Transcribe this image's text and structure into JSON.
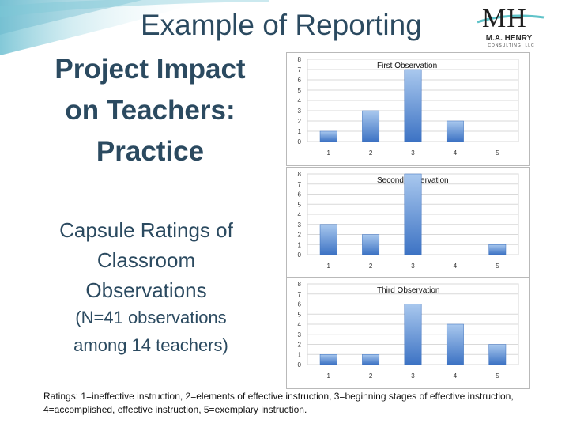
{
  "slide": {
    "title": "Example of Reporting",
    "heading": [
      "Project Impact",
      "on Teachers:",
      "Practice"
    ],
    "subheading": [
      "Capsule Ratings of",
      "Classroom",
      "Observations"
    ],
    "note": [
      "(N=41 observations",
      "among 14 teachers)"
    ],
    "footnote": "Ratings: 1=ineffective instruction, 2=elements of effective instruction, 3=beginning stages of effective instruction, 4=accomplished, effective instruction, 5=exemplary instruction.",
    "logo": {
      "letters": "MH",
      "name": "M.A. HENRY",
      "sub": "CONSULTING, LLC"
    }
  },
  "colors": {
    "title": "#2b4a60",
    "bar_top": "#a9c8ee",
    "bar_bottom": "#3d73c4",
    "accent_teal": "#5fc3c9"
  },
  "chart_data": [
    {
      "type": "bar",
      "title": "First Observation",
      "categories": [
        "1",
        "2",
        "3",
        "4",
        "5"
      ],
      "values": [
        1,
        3,
        7,
        2,
        0
      ],
      "ylim": [
        0,
        8
      ],
      "yticks": [
        "0",
        "1",
        "2",
        "3",
        "4",
        "5",
        "6",
        "7",
        "8"
      ],
      "grid": true,
      "legend": "none"
    },
    {
      "type": "bar",
      "title": "Second Observation",
      "categories": [
        "1",
        "2",
        "3",
        "4",
        "5"
      ],
      "values": [
        3,
        2,
        8,
        0,
        1
      ],
      "ylim": [
        0,
        8
      ],
      "yticks": [
        "0",
        "1",
        "2",
        "3",
        "4",
        "5",
        "6",
        "7",
        "8"
      ],
      "grid": true,
      "legend": "none"
    },
    {
      "type": "bar",
      "title": "Third Observation",
      "categories": [
        "1",
        "2",
        "3",
        "4",
        "5"
      ],
      "values": [
        1,
        1,
        6,
        4,
        2
      ],
      "ylim": [
        0,
        8
      ],
      "yticks": [
        "0",
        "1",
        "2",
        "3",
        "4",
        "5",
        "6",
        "7",
        "8"
      ],
      "grid": true,
      "legend": "none"
    }
  ]
}
